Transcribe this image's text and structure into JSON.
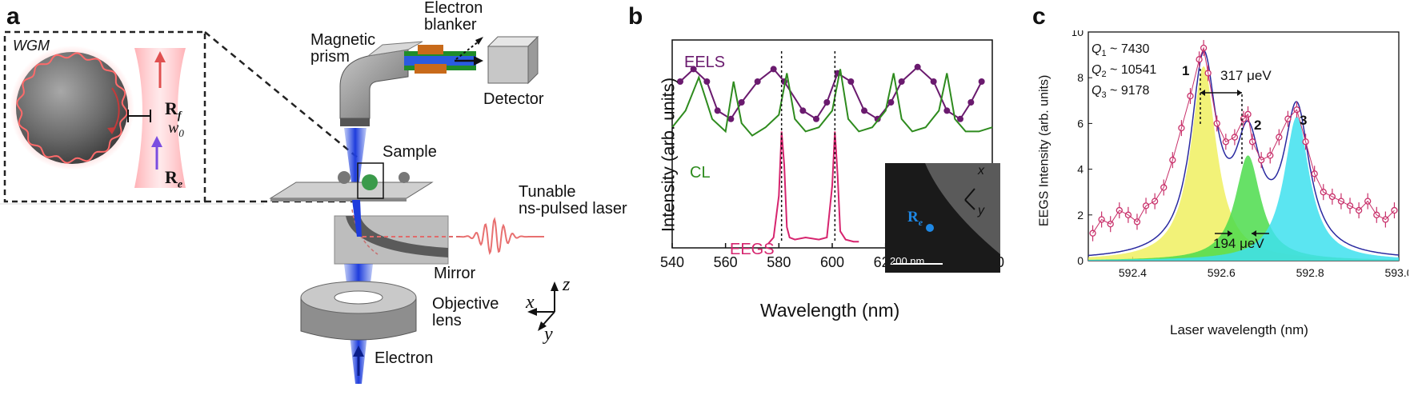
{
  "panels": {
    "a": "a",
    "b": "b",
    "c": "c"
  },
  "panel_a": {
    "wgm_label": "WGM",
    "rf": "R",
    "rf_sub": "f",
    "w0": "w",
    "w0_sub": "0",
    "re": "R",
    "re_sub": "e",
    "magnetic_prism": [
      "Magnetic",
      "prism"
    ],
    "electron_blanker": [
      "Electron",
      "blanker"
    ],
    "detector": "Detector",
    "sample": "Sample",
    "tunable_laser": [
      "Tunable",
      "ns-pulsed laser"
    ],
    "mirror": "Mirror",
    "objective_lens": [
      "Objective",
      "lens"
    ],
    "electron": "Electron",
    "axes": {
      "x": "x",
      "y": "y",
      "z": "z"
    }
  },
  "panel_b": {
    "ylabel": "Intensity (arb. units)",
    "xlabel": "Wavelength (nm)",
    "eels_label": "EELS",
    "cl_label": "CL",
    "eegs_label": "EEGS",
    "inset": {
      "scale": "200 nm",
      "re": "R",
      "re_sub": "e",
      "x": "x",
      "y": "y"
    },
    "colors": {
      "eels": "#6a1a6e",
      "cl": "#2e8b1e",
      "eegs": "#d6246e"
    }
  },
  "panel_c": {
    "ylabel": "EEGS Intensity (arb. units)",
    "xlabel": "Laser wavelength (nm)",
    "q_labels": [
      {
        "sym": "Q",
        "sub": "1",
        "val": " ~ 7430"
      },
      {
        "sym": "Q",
        "sub": "2",
        "val": " ~ 10541"
      },
      {
        "sym": "Q",
        "sub": "3",
        "val": " ~ 9178"
      }
    ],
    "peak_labels": [
      "1",
      "2",
      "3"
    ],
    "spacing_317": "317 μeV",
    "width_194": "194 μeV",
    "colors": {
      "peak1": "#f0f060",
      "peak2": "#4cdc4c",
      "peak3": "#3ee0ee",
      "data": "#c8306a",
      "fit": "#2a2aa0"
    }
  },
  "chart_data": [
    {
      "type": "line",
      "panel": "b",
      "xlabel": "Wavelength (nm)",
      "ylabel": "Intensity (arb. units)",
      "xlim": [
        540,
        660
      ],
      "x_ticks": [
        540,
        560,
        580,
        600,
        620,
        640,
        660
      ],
      "series": [
        {
          "name": "EELS",
          "x": [
            543,
            548,
            553,
            557,
            562,
            566,
            572,
            578,
            582,
            589,
            594,
            598,
            602,
            607,
            612,
            617,
            622,
            626,
            632,
            638,
            643,
            648,
            652,
            656
          ],
          "y": [
            0.8,
            0.86,
            0.8,
            0.66,
            0.62,
            0.7,
            0.8,
            0.86,
            0.8,
            0.66,
            0.62,
            0.7,
            0.84,
            0.8,
            0.66,
            0.62,
            0.7,
            0.8,
            0.87,
            0.8,
            0.66,
            0.62,
            0.7,
            0.8
          ]
        },
        {
          "name": "CL",
          "x": [
            540,
            545,
            550,
            555,
            560,
            563,
            566,
            570,
            575,
            580,
            583,
            586,
            590,
            595,
            600,
            603,
            606,
            610,
            615,
            620,
            623,
            626,
            630,
            635,
            640,
            643,
            646,
            650,
            655,
            660
          ],
          "y": [
            0.58,
            0.66,
            0.82,
            0.62,
            0.56,
            0.8,
            0.6,
            0.54,
            0.58,
            0.64,
            0.84,
            0.62,
            0.56,
            0.58,
            0.66,
            0.86,
            0.62,
            0.56,
            0.58,
            0.66,
            0.84,
            0.62,
            0.56,
            0.58,
            0.66,
            0.84,
            0.62,
            0.56,
            0.56,
            0.58
          ]
        },
        {
          "name": "EEGS",
          "x": [
            576,
            578,
            580,
            581,
            582,
            583,
            584,
            586,
            590,
            595,
            598,
            600,
            601,
            602,
            603,
            605,
            608,
            610
          ],
          "y": [
            0.02,
            0.05,
            0.25,
            0.56,
            0.4,
            0.1,
            0.05,
            0.04,
            0.05,
            0.04,
            0.05,
            0.3,
            0.56,
            0.35,
            0.08,
            0.04,
            0.03,
            0.03
          ]
        }
      ]
    },
    {
      "type": "scatter",
      "panel": "c",
      "xlabel": "Laser wavelength (nm)",
      "ylabel": "EEGS Intensity (arb. units)",
      "xlim": [
        592.3,
        593.0
      ],
      "ylim": [
        0,
        10
      ],
      "x_ticks": [
        592.4,
        592.6,
        592.8,
        593.0
      ],
      "y_ticks": [
        0,
        2,
        4,
        6,
        8,
        10
      ],
      "peaks": [
        {
          "label": "1",
          "center": 592.56,
          "height": 8.5,
          "color": "yellow"
        },
        {
          "label": "2",
          "center": 592.66,
          "height": 4.6,
          "color": "green"
        },
        {
          "label": "3",
          "center": 592.77,
          "height": 6.3,
          "color": "cyan"
        }
      ],
      "data": {
        "x": [
          592.31,
          592.33,
          592.35,
          592.37,
          592.39,
          592.41,
          592.43,
          592.45,
          592.47,
          592.49,
          592.51,
          592.53,
          592.55,
          592.56,
          592.57,
          592.59,
          592.61,
          592.63,
          592.65,
          592.66,
          592.67,
          592.69,
          592.71,
          592.73,
          592.75,
          592.77,
          592.79,
          592.81,
          592.83,
          592.85,
          592.87,
          592.89,
          592.91,
          592.93,
          592.95,
          592.97,
          592.99
        ],
        "y": [
          1.2,
          1.8,
          1.6,
          2.2,
          2.0,
          1.7,
          2.4,
          2.6,
          3.2,
          4.4,
          5.8,
          7.2,
          8.8,
          9.3,
          8.2,
          6.0,
          5.2,
          5.4,
          6.2,
          6.4,
          5.2,
          4.4,
          4.6,
          5.4,
          6.2,
          6.6,
          5.2,
          3.8,
          3.0,
          2.8,
          2.6,
          2.4,
          2.2,
          2.6,
          2.0,
          1.8,
          2.2
        ]
      }
    }
  ]
}
